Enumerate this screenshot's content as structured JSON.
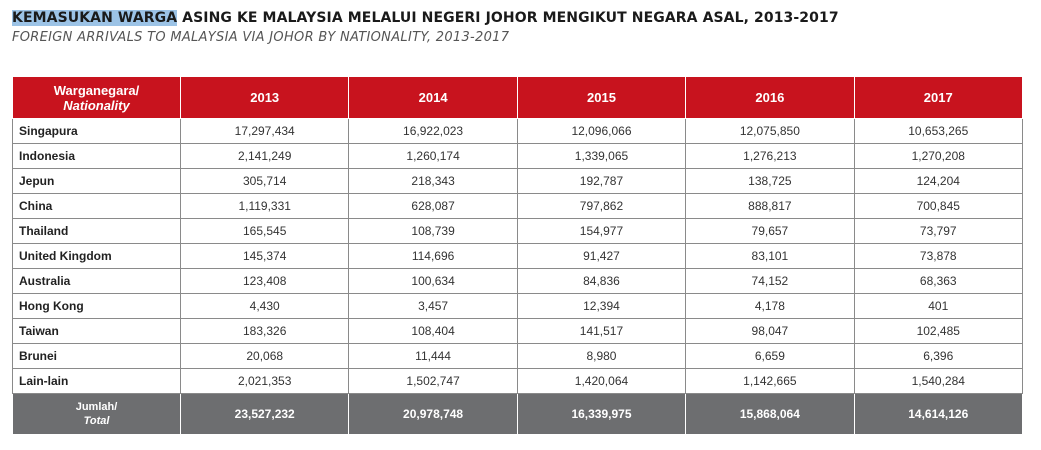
{
  "title": {
    "highlight": "KEMASUKAN WARGA",
    "rest": " ASING KE MALAYSIA MELALUI NEGERI JOHOR MENGIKUT NEGARA ASAL, 2013-2017",
    "subtitle": "FOREIGN ARRIVALS TO MALAYSIA VIA JOHOR BY NATIONALITY, 2013-2017"
  },
  "table": {
    "header": {
      "nationality_line1": "Warganegara/",
      "nationality_line2": "Nationality",
      "years": [
        "2013",
        "2014",
        "2015",
        "2016",
        "2017"
      ]
    },
    "rows": [
      {
        "name": "Singapura",
        "values": [
          "17,297,434",
          "16,922,023",
          "12,096,066",
          "12,075,850",
          "10,653,265"
        ]
      },
      {
        "name": "Indonesia",
        "values": [
          "2,141,249",
          "1,260,174",
          "1,339,065",
          "1,276,213",
          "1,270,208"
        ]
      },
      {
        "name": "Jepun",
        "values": [
          "305,714",
          "218,343",
          "192,787",
          "138,725",
          "124,204"
        ]
      },
      {
        "name": "China",
        "values": [
          "1,119,331",
          "628,087",
          "797,862",
          "888,817",
          "700,845"
        ]
      },
      {
        "name": "Thailand",
        "values": [
          "165,545",
          "108,739",
          "154,977",
          "79,657",
          "73,797"
        ]
      },
      {
        "name": "United Kingdom",
        "values": [
          "145,374",
          "114,696",
          "91,427",
          "83,101",
          "73,878"
        ]
      },
      {
        "name": "Australia",
        "values": [
          "123,408",
          "100,634",
          "84,836",
          "74,152",
          "68,363"
        ]
      },
      {
        "name": "Hong Kong",
        "values": [
          "4,430",
          "3,457",
          "12,394",
          "4,178",
          "401"
        ]
      },
      {
        "name": "Taiwan",
        "values": [
          "183,326",
          "108,404",
          "141,517",
          "98,047",
          "102,485"
        ]
      },
      {
        "name": "Brunei",
        "values": [
          "20,068",
          "11,444",
          "8,980",
          "6,659",
          "6,396"
        ]
      },
      {
        "name": "Lain-lain",
        "values": [
          "2,021,353",
          "1,502,747",
          "1,420,064",
          "1,142,665",
          "1,540,284"
        ]
      }
    ],
    "total": {
      "label_line1": "Jumlah/",
      "label_line2": "Total",
      "values": [
        "23,527,232",
        "20,978,748",
        "16,339,975",
        "15,868,064",
        "14,614,126"
      ]
    }
  },
  "colors": {
    "header_bg": "#c8131e",
    "total_bg": "#6d6e70",
    "title_highlight": "#9cc3e6"
  }
}
